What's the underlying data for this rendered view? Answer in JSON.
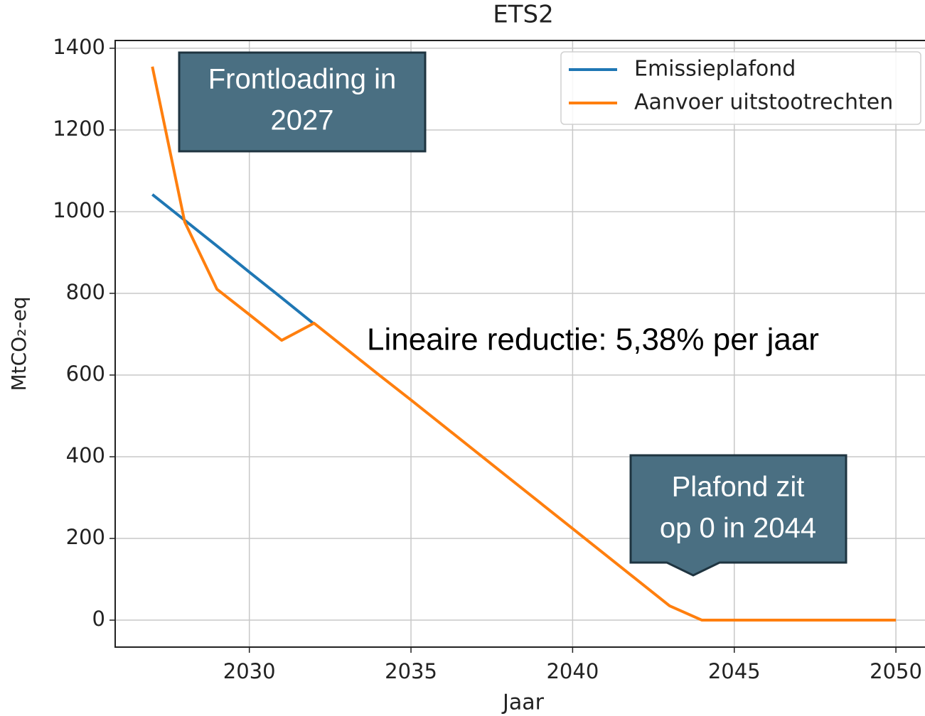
{
  "chart_data": {
    "type": "line",
    "title": "ETS2",
    "xlabel": "Jaar",
    "ylabel": "MtCO₂-eq",
    "x": [
      2027,
      2028,
      2029,
      2030,
      2031,
      2032,
      2033,
      2034,
      2035,
      2036,
      2037,
      2038,
      2039,
      2040,
      2041,
      2042,
      2043,
      2044,
      2045,
      2046,
      2047,
      2048,
      2049,
      2050
    ],
    "series": [
      {
        "name": "Emissieplafond",
        "color": "#1f77b4",
        "values": [
          1042,
          979,
          916,
          852,
          789,
          725,
          null,
          null,
          null,
          null,
          null,
          null,
          null,
          null,
          null,
          null,
          null,
          null,
          null,
          null,
          null,
          null,
          null,
          null
        ]
      },
      {
        "name": "Aanvoer uitstootrechten",
        "color": "#ff7f0e",
        "values": [
          1355,
          975,
          810,
          748,
          685,
          727,
          664,
          601,
          539,
          476,
          413,
          350,
          287,
          224,
          161,
          98,
          35,
          0,
          0,
          0,
          0,
          0,
          0,
          0
        ]
      }
    ],
    "xlim": [
      2025.85,
      2050.9
    ],
    "ylim": [
      -66,
      1419
    ],
    "xticks": [
      2030,
      2035,
      2040,
      2045,
      2050
    ],
    "yticks": [
      0,
      200,
      400,
      600,
      800,
      1000,
      1200,
      1400
    ],
    "grid": true,
    "legend": "upper right",
    "annotations": [
      {
        "lines": [
          "Frontloading in",
          "2027"
        ]
      },
      {
        "lines": [
          "Plafond zit",
          "op 0 in 2044"
        ]
      },
      {
        "lines": [
          "Lineaire reductie: 5,38% per jaar"
        ]
      }
    ]
  }
}
